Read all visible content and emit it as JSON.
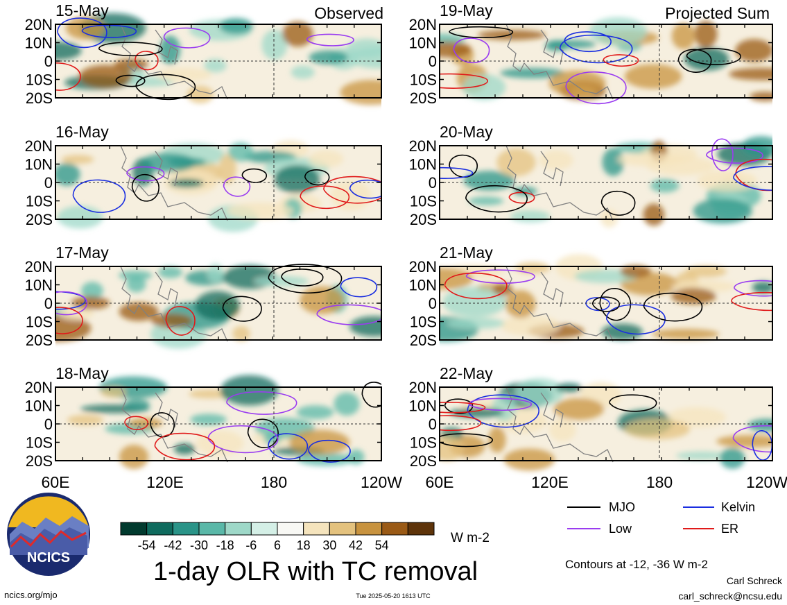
{
  "panels": [
    {
      "date": "15-May",
      "tag": "Observed"
    },
    {
      "date": "16-May",
      "tag": ""
    },
    {
      "date": "17-May",
      "tag": ""
    },
    {
      "date": "18-May",
      "tag": ""
    },
    {
      "date": "19-May",
      "tag": "Projected Sum"
    },
    {
      "date": "20-May",
      "tag": ""
    },
    {
      "date": "21-May",
      "tag": ""
    },
    {
      "date": "22-May",
      "tag": ""
    }
  ],
  "lat_labels": [
    "20N",
    "10N",
    "0",
    "10S",
    "20S"
  ],
  "lon_labels": [
    "60E",
    "120E",
    "180",
    "120W"
  ],
  "colorbar": {
    "ticks": [
      "-54",
      "-42",
      "-30",
      "-18",
      "-6",
      "6",
      "18",
      "30",
      "42",
      "54"
    ],
    "colors": [
      "#013a2e",
      "#0f6b5e",
      "#2a9488",
      "#5ab8a8",
      "#9ed8c8",
      "#d4efe6",
      "#f8f8f4",
      "#f5e4bd",
      "#e4c27e",
      "#c8933f",
      "#9a5a16",
      "#5e340a"
    ],
    "units": "W m-2"
  },
  "legend": [
    {
      "label": "MJO",
      "color": "#000000"
    },
    {
      "label": "Kelvin",
      "color": "#1a2ee0"
    },
    {
      "label": "Low",
      "color": "#9a3cf0"
    },
    {
      "label": "ER",
      "color": "#e01a1a"
    }
  ],
  "contour_note": "Contours at -12, -36 W m-2",
  "logo_text": "NCICS",
  "title": "1-day OLR with TC removal",
  "footer": {
    "url": "ncics.org/mjo",
    "timestamp": "Tue 2025-05-20 1613 UTC",
    "author": "Carl Schreck",
    "email": "carl_schreck@ncsu.edu"
  }
}
